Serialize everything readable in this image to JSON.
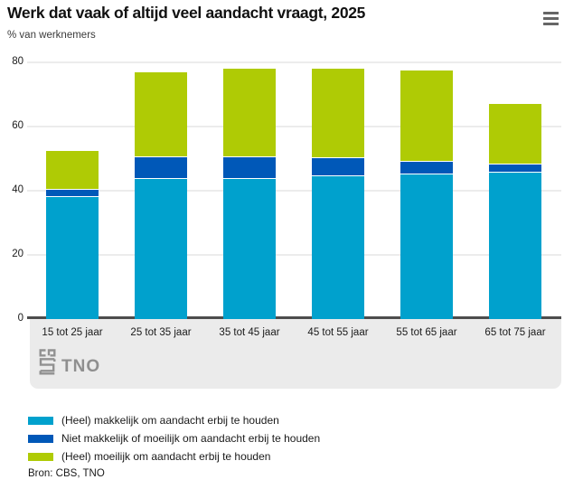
{
  "header": {
    "title": "Werk dat vaak of altijd veel aandacht vraagt, 2025",
    "subtitle": "% van werknemers"
  },
  "menu": {
    "icon": "hamburger-icon"
  },
  "chart_data": {
    "type": "bar",
    "stacked": true,
    "title": "Werk dat vaak of altijd veel aandacht vraagt, 2025",
    "subtitle": "% van werknemers",
    "categories": [
      "15 tot 25 jaar",
      "25 tot 35 jaar",
      "35 tot 45 jaar",
      "45 tot 55 jaar",
      "55 tot 65 jaar",
      "65 tot 75 jaar"
    ],
    "series": [
      {
        "name": "(Heel) makkelijk om aandacht erbij te houden",
        "color": "#00a1cd",
        "values": [
          37.9,
          43.6,
          43.6,
          44.5,
          45.0,
          45.5
        ]
      },
      {
        "name": "Niet makkelijk of moeilijk om aandacht erbij te houden",
        "color": "#0058b8",
        "values": [
          2.3,
          6.6,
          6.6,
          5.5,
          3.8,
          2.6
        ]
      },
      {
        "name": "(Heel) moeilijk om aandacht erbij te houden",
        "color": "#afcb05",
        "values": [
          12.0,
          26.7,
          27.8,
          28.0,
          28.5,
          18.7
        ]
      }
    ],
    "totals": [
      52.2,
      76.9,
      78.0,
      78.0,
      77.3,
      66.8
    ],
    "ylim": [
      0,
      80
    ],
    "yticks": [
      0,
      20,
      40,
      60,
      80
    ],
    "grid": true,
    "legend_position": "bottom",
    "source": "Bron: CBS, TNO"
  },
  "logos": {
    "cbs": "cbs",
    "tno": "TNO"
  }
}
